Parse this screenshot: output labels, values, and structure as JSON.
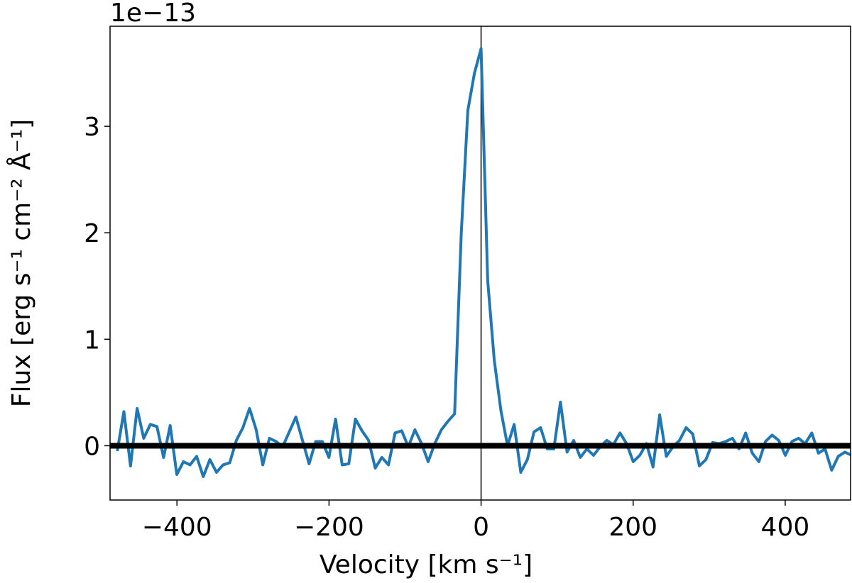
{
  "chart_data": {
    "type": "line",
    "xlabel": "Velocity [km s⁻¹]",
    "ylabel": "Flux [erg s⁻¹ cm⁻² Å⁻¹]",
    "y_offset_label": "1e−13",
    "x": [
      -478.5,
      -469.8,
      -461.1,
      -452.4,
      -443.7,
      -435,
      -426.3,
      -417.6,
      -408.9,
      -400.2,
      -391.5,
      -382.8,
      -374.1,
      -365.4,
      -356.7,
      -348,
      -339.3,
      -330.6,
      -321.9,
      -313.2,
      -304.5,
      -295.8,
      -287.1,
      -278.4,
      -269.7,
      -261,
      -252.3,
      -243.6,
      -234.9,
      -226.2,
      -217.5,
      -208.8,
      -200.1,
      -191.4,
      -182.7,
      -174,
      -165.3,
      -156.6,
      -147.9,
      -139.2,
      -130.5,
      -121.8,
      -113.1,
      -104.4,
      -95.7,
      -87,
      -78.3,
      -69.6,
      -60.9,
      -52.2,
      -43.5,
      -34.8,
      -26.1,
      -17.4,
      -8.7,
      0,
      8.7,
      17.4,
      26.1,
      34.8,
      43.5,
      52.2,
      60.9,
      69.6,
      78.3,
      87,
      95.7,
      104.4,
      113.1,
      121.8,
      130.5,
      139.2,
      147.9,
      156.6,
      165.3,
      174,
      182.7,
      191.4,
      200.1,
      208.8,
      217.5,
      226.2,
      234.9,
      243.6,
      252.3,
      261,
      269.7,
      278.4,
      287.1,
      295.8,
      304.5,
      313.2,
      321.9,
      330.6,
      339.3,
      348,
      356.7,
      365.4,
      374.1,
      382.8,
      391.5,
      400.2,
      408.9,
      417.6,
      426.3,
      435,
      443.7,
      452.4,
      461.1,
      469.8,
      478.5,
      487.2
    ],
    "series": [
      {
        "color": "#1f77b4",
        "values": [
          -0.05,
          0.32,
          -0.19,
          0.35,
          0.07,
          0.2,
          0.18,
          -0.11,
          0.19,
          -0.27,
          -0.15,
          -0.18,
          -0.1,
          -0.29,
          -0.13,
          -0.25,
          -0.18,
          -0.16,
          0.05,
          0.17,
          0.35,
          0.15,
          -0.18,
          0.07,
          0.04,
          -0.01,
          0.13,
          0.27,
          0.05,
          -0.17,
          0.04,
          0.04,
          -0.11,
          0.25,
          -0.18,
          -0.17,
          0.25,
          0.14,
          0.05,
          -0.21,
          -0.11,
          -0.18,
          0.12,
          0.14,
          -0.01,
          0.15,
          0.02,
          -0.15,
          0.02,
          0.15,
          0.23,
          0.3,
          1.99,
          3.15,
          3.5,
          3.73,
          1.55,
          0.8,
          0.33,
          0.0,
          0.2,
          -0.25,
          -0.13,
          0.13,
          0.17,
          -0.03,
          -0.03,
          0.41,
          -0.06,
          0.05,
          -0.11,
          -0.03,
          -0.09,
          -0.01,
          0.05,
          0.01,
          0.12,
          0.02,
          -0.15,
          -0.09,
          0.02,
          -0.2,
          0.29,
          -0.1,
          -0.01,
          0.05,
          0.17,
          0.11,
          -0.19,
          -0.13,
          0.03,
          0.02,
          0.04,
          0.07,
          -0.03,
          0.12,
          -0.07,
          -0.15,
          0.04,
          0.1,
          0.05,
          -0.09,
          0.04,
          0.07,
          0.02,
          0.12,
          -0.07,
          -0.03,
          -0.23,
          -0.1,
          -0.06,
          -0.09
        ]
      }
    ],
    "hlines": [
      0
    ],
    "vlines": [
      0
    ],
    "xlim": [
      -488,
      486
    ],
    "ylim": [
      -0.51,
      3.94
    ],
    "xticks": [
      {
        "value": -400,
        "label": "−400"
      },
      {
        "value": -200,
        "label": "−200"
      },
      0,
      200,
      400
    ],
    "yticks": [
      0,
      1,
      2,
      3
    ]
  }
}
